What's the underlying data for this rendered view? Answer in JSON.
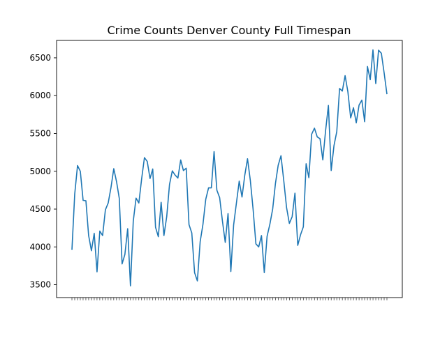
{
  "chart_data": {
    "type": "line",
    "title": "Crime Counts Denver County Full Timespan",
    "xlabel": "",
    "ylabel": "",
    "ylim": [
      3330,
      6730
    ],
    "yticks": [
      3500,
      4000,
      4500,
      5000,
      5500,
      6000,
      6500
    ],
    "ytick_labels": [
      "3500",
      "4000",
      "4500",
      "5000",
      "5500",
      "6000",
      "6500"
    ],
    "grid": false,
    "legend": "none",
    "line_color": "#1f77b4",
    "x_tick_labels_note": "unreadable",
    "series": [
      {
        "values": [
          3960,
          4700,
          5075,
          5000,
          4615,
          4610,
          4150,
          3950,
          4180,
          3670,
          4210,
          4150,
          4490,
          4580,
          4785,
          5035,
          4860,
          4640,
          3775,
          3900,
          4240,
          3485,
          4340,
          4645,
          4580,
          4900,
          5180,
          5130,
          4905,
          5030,
          4260,
          4135,
          4590,
          4150,
          4400,
          4825,
          5005,
          4950,
          4910,
          5150,
          5010,
          5040,
          4295,
          4185,
          3660,
          3550,
          4070,
          4300,
          4630,
          4780,
          4780,
          5260,
          4750,
          4650,
          4340,
          4060,
          4440,
          3675,
          4290,
          4580,
          4870,
          4660,
          4950,
          5165,
          4880,
          4495,
          4040,
          4000,
          4150,
          3660,
          4140,
          4300,
          4500,
          4840,
          5080,
          5205,
          4875,
          4520,
          4310,
          4400,
          4710,
          4020,
          4160,
          4265,
          5100,
          4915,
          5490,
          5570,
          5455,
          5430,
          5150,
          5540,
          5870,
          5010,
          5340,
          5525,
          6095,
          6060,
          6265,
          6050,
          5705,
          5840,
          5640,
          5875,
          5940,
          5655,
          6385,
          6210,
          6605,
          6160,
          6600,
          6560,
          6300,
          6020
        ]
      }
    ]
  }
}
